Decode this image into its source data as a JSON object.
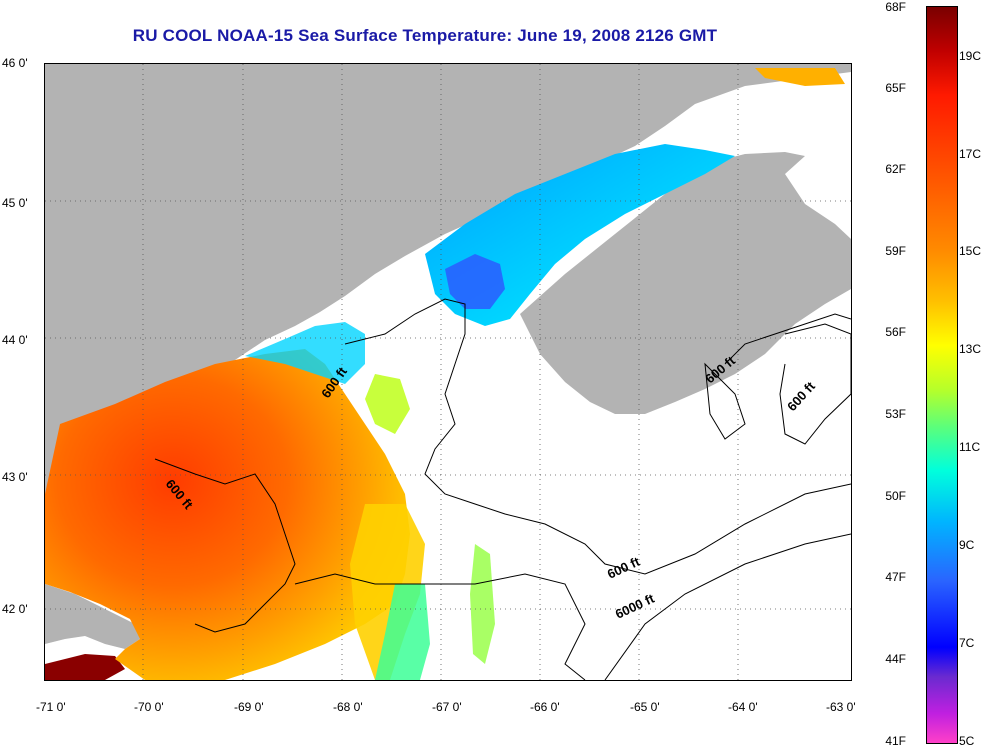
{
  "title": "RU COOL  NOAA-15  Sea Surface Temperature:  June 19, 2008 2126 GMT",
  "map": {
    "lat_labels": [
      "46 0'",
      "45 0'",
      "44 0'",
      "43 0'",
      "42 0'"
    ],
    "lon_labels": [
      "-71 0'",
      "-70 0'",
      "-69 0'",
      "-68 0'",
      "-67 0'",
      "-66 0'",
      "-65 0'",
      "-64 0'",
      "-63 0'"
    ],
    "lat_range": [
      41.5,
      46.0
    ],
    "lon_range": [
      -71.0,
      -63.0
    ],
    "grid": "dotted",
    "contour_labels": [
      "600 ft",
      "600 ft",
      "600 ft",
      "600 ft",
      "600 ft",
      "6000 ft"
    ],
    "colors": {
      "land": "#b3b3b3",
      "cloud_or_no_data": "#ffffff",
      "warm_sst": "#ff6a00",
      "cool_sst": "#00c8ff"
    }
  },
  "colorbar": {
    "fahrenheit_labels": [
      "68F",
      "65F",
      "62F",
      "59F",
      "56F",
      "53F",
      "50F",
      "47F",
      "44F",
      "41F"
    ],
    "celsius_labels": [
      "19C",
      "17C",
      "15C",
      "13C",
      "11C",
      "9C",
      "7C",
      "5C"
    ]
  }
}
